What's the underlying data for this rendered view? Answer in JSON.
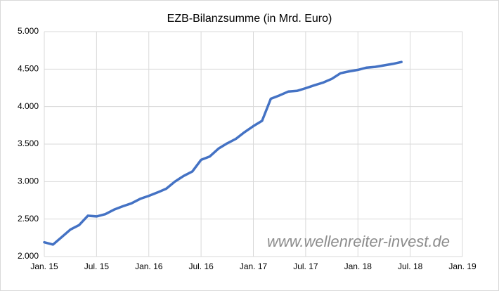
{
  "chart_data": {
    "type": "line",
    "title": "EZB-Bilanzsumme (in Mrd. Euro)",
    "annotation": "www.wellenreiter-invest.de",
    "x": [
      "2015-01",
      "2015-02",
      "2015-03",
      "2015-04",
      "2015-05",
      "2015-06",
      "2015-07",
      "2015-08",
      "2015-09",
      "2015-10",
      "2015-11",
      "2015-12",
      "2016-01",
      "2016-02",
      "2016-03",
      "2016-04",
      "2016-05",
      "2016-06",
      "2016-07",
      "2016-08",
      "2016-09",
      "2016-10",
      "2016-11",
      "2016-12",
      "2017-01",
      "2017-02",
      "2017-03",
      "2017-04",
      "2017-05",
      "2017-06",
      "2017-07",
      "2017-08",
      "2017-09",
      "2017-10",
      "2017-11",
      "2017-12",
      "2018-01",
      "2018-02",
      "2018-03",
      "2018-04",
      "2018-05",
      "2018-06"
    ],
    "series": [
      {
        "name": "EZB-Bilanzsumme",
        "color": "#4472c4",
        "values": [
          2190,
          2160,
          2260,
          2360,
          2420,
          2545,
          2535,
          2565,
          2625,
          2670,
          2710,
          2770,
          2810,
          2855,
          2905,
          3000,
          3075,
          3135,
          3290,
          3335,
          3440,
          3510,
          3570,
          3660,
          3740,
          3810,
          4105,
          4150,
          4200,
          4210,
          4245,
          4285,
          4320,
          4370,
          4445,
          4470,
          4490,
          4520,
          4530,
          4550,
          4570,
          4595
        ]
      }
    ],
    "xlim": [
      "2015-01",
      "2019-01"
    ],
    "xticks": [
      {
        "value": "2015-01",
        "label": "Jan. 15"
      },
      {
        "value": "2015-07",
        "label": "Jul. 15"
      },
      {
        "value": "2016-01",
        "label": "Jan. 16"
      },
      {
        "value": "2016-07",
        "label": "Jul. 16"
      },
      {
        "value": "2017-01",
        "label": "Jan. 17"
      },
      {
        "value": "2017-07",
        "label": "Jul. 17"
      },
      {
        "value": "2018-01",
        "label": "Jan. 18"
      },
      {
        "value": "2018-07",
        "label": "Jul. 18"
      },
      {
        "value": "2019-01",
        "label": "Jan. 19"
      }
    ],
    "ylim": [
      2000,
      5000
    ],
    "yticks": [
      {
        "value": 2000,
        "label": "2.000"
      },
      {
        "value": 2500,
        "label": "2.500"
      },
      {
        "value": 3000,
        "label": "3.000"
      },
      {
        "value": 3500,
        "label": "3.500"
      },
      {
        "value": 4000,
        "label": "4.000"
      },
      {
        "value": 4500,
        "label": "4.500"
      },
      {
        "value": 5000,
        "label": "5.000"
      }
    ],
    "grid": true
  }
}
